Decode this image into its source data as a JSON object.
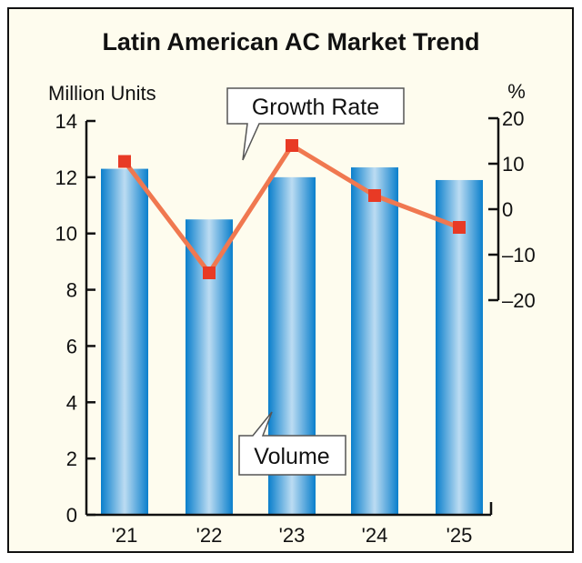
{
  "chart_data": {
    "type": "bar",
    "title": "Latin American AC Market Trend",
    "categories": [
      "'21",
      "'22",
      "'23",
      "'24",
      "'25"
    ],
    "series": [
      {
        "name": "Volume",
        "type": "bar",
        "axis": "left",
        "values": [
          12.3,
          10.5,
          12.0,
          12.35,
          11.9
        ]
      },
      {
        "name": "Growth Rate",
        "type": "line",
        "axis": "right",
        "values": [
          10.5,
          -14,
          14,
          3,
          -4
        ]
      }
    ],
    "ylabel": "Million Units",
    "ylim": [
      0,
      14
    ],
    "yticks": [
      "0",
      "2",
      "4",
      "6",
      "8",
      "10",
      "12",
      "14"
    ],
    "y2label": "%",
    "y2lim": [
      -20,
      20
    ],
    "y2ticks": [
      "20",
      "10",
      "0",
      "–10",
      "–20"
    ],
    "y2tick_values": [
      20,
      10,
      0,
      -10,
      -20
    ],
    "grid": false,
    "annotations": [
      "Growth Rate",
      "Volume"
    ],
    "colors": {
      "bar": "#0a84d0",
      "bar_highlight": "#bcdcf2",
      "line": "#f07850",
      "marker": "#e83a25",
      "background": "#fefcee"
    }
  }
}
